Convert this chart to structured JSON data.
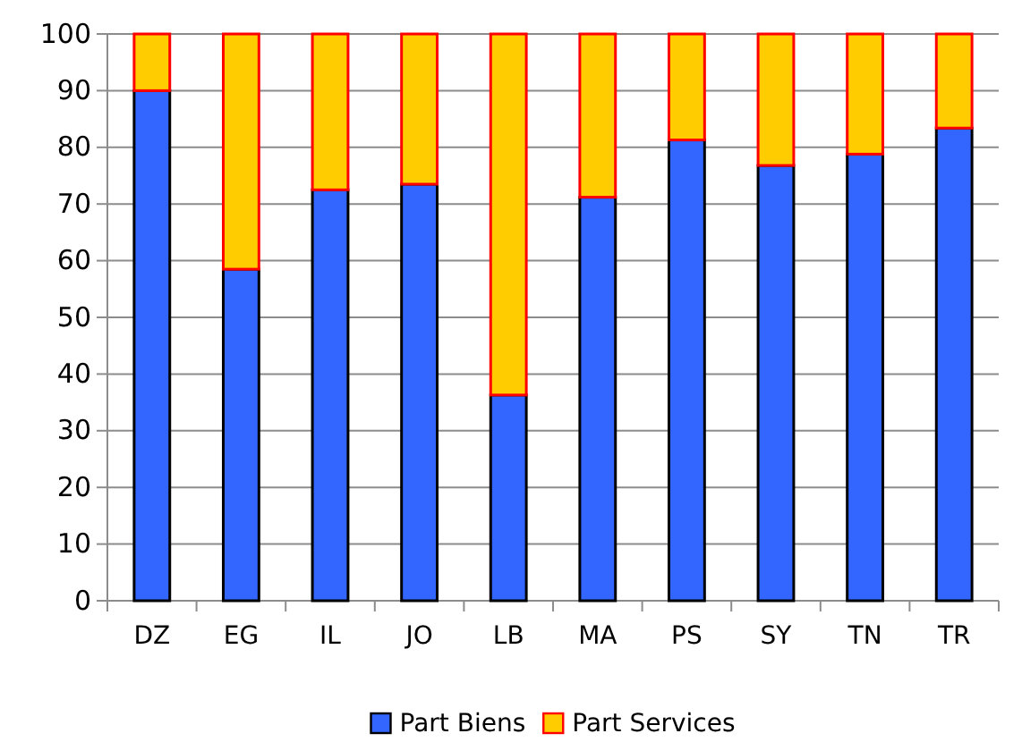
{
  "chart_data": {
    "type": "bar",
    "stacked": true,
    "categories": [
      "DZ",
      "EG",
      "IL",
      "JO",
      "LB",
      "MA",
      "PS",
      "SY",
      "TN",
      "TR"
    ],
    "series": [
      {
        "name": "Part Biens",
        "color": "#3366ff",
        "values": [
          90,
          58.5,
          72.5,
          73.5,
          36.3,
          71.2,
          81.3,
          76.8,
          78.8,
          83.4
        ]
      },
      {
        "name": "Part Services",
        "color": "#ffcc00",
        "values": [
          10,
          41.5,
          27.5,
          26.5,
          63.7,
          28.8,
          18.7,
          23.2,
          21.2,
          16.6
        ]
      }
    ],
    "ylim": [
      0,
      100
    ],
    "yticks": [
      0,
      10,
      20,
      30,
      40,
      50,
      60,
      70,
      80,
      90,
      100
    ],
    "grid": "y",
    "legend": "bottom"
  }
}
